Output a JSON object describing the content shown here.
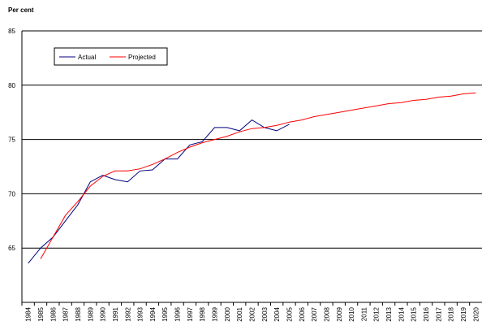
{
  "chart_data": {
    "type": "line",
    "y_label": "Per cent",
    "categories": [
      "1984",
      "1985",
      "1986",
      "1987",
      "1988",
      "1989",
      "1990",
      "1991",
      "1992",
      "1993",
      "1994",
      "1995",
      "1996",
      "1997",
      "1998",
      "1999",
      "2000",
      "2001",
      "2002",
      "2003",
      "2004",
      "2005",
      "2006",
      "2007",
      "2008",
      "2009",
      "2010",
      "2011",
      "2012",
      "2013",
      "2014",
      "2015",
      "2016",
      "2017",
      "2018",
      "2019",
      "2020"
    ],
    "series": [
      {
        "name": "Actual",
        "color": "#000080",
        "values": [
          63.6,
          65.0,
          66.0,
          67.5,
          69.0,
          71.1,
          71.7,
          71.3,
          71.1,
          72.1,
          72.2,
          73.2,
          73.2,
          74.5,
          74.8,
          76.1,
          76.1,
          75.8,
          76.8,
          76.1,
          75.8,
          76.4,
          null,
          null,
          null,
          null,
          null,
          null,
          null,
          null,
          null,
          null,
          null,
          null,
          null,
          null,
          null
        ]
      },
      {
        "name": "Projected",
        "color": "#ff0000",
        "values": [
          null,
          64.0,
          66.0,
          68.0,
          69.3,
          70.7,
          71.6,
          72.1,
          72.1,
          72.3,
          72.7,
          73.2,
          73.8,
          74.3,
          74.7,
          75.0,
          75.3,
          75.7,
          76.0,
          76.1,
          76.3,
          76.6,
          76.8,
          77.1,
          77.3,
          77.5,
          77.7,
          77.9,
          78.1,
          78.3,
          78.4,
          78.6,
          78.7,
          78.9,
          79.0,
          79.2,
          79.3
        ]
      }
    ],
    "ylim": [
      60,
      85
    ],
    "yticks": [
      65,
      70,
      75,
      80,
      85
    ],
    "grid": true,
    "legend": "top-left"
  }
}
